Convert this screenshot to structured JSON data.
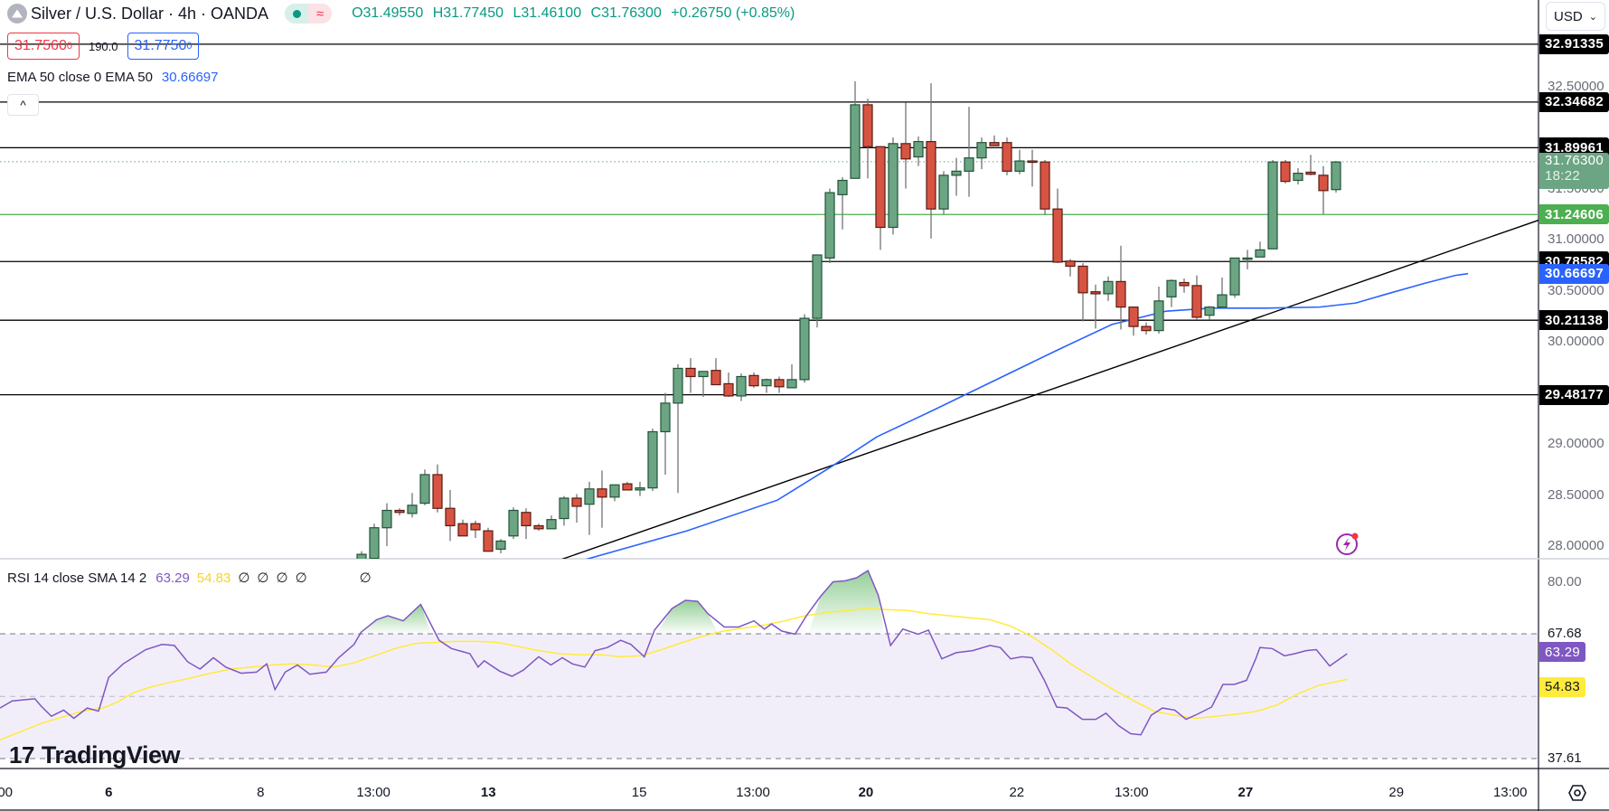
{
  "header": {
    "symbol_title": "Silver / U.S. Dollar · 4h · OANDA",
    "ohlc": {
      "open": "O31.49550",
      "high": "H31.77450",
      "low": "L31.46100",
      "close": "C31.76300",
      "change": "+0.26750 (+0.85%)"
    },
    "sell_price": "31.7560",
    "sell_price_sup": "0",
    "spread": "190.0",
    "buy_price": "31.7750",
    "buy_price_sup": "0",
    "ema_legend": "EMA 50 close 0 EMA 50",
    "ema_value": "30.66697",
    "collapse_icon": "^"
  },
  "currency": {
    "selected": "USD"
  },
  "rsi_legend": {
    "label": "RSI 14 close SMA 14 2",
    "rsi_value": "63.29",
    "sma_value": "54.83",
    "na_values": [
      "∅",
      "∅",
      "∅",
      "∅",
      "∅"
    ]
  },
  "price_axis": {
    "ticks": [
      "32.50000",
      "31.50000",
      "31.00000",
      "30.50000",
      "30.00000",
      "29.00000",
      "28.50000",
      "28.00000"
    ],
    "labels": [
      {
        "text": "32.91335",
        "kind": "hline",
        "color": "#000000"
      },
      {
        "text": "32.34682",
        "kind": "hline",
        "color": "#000000"
      },
      {
        "text": "31.89961",
        "kind": "hline",
        "color": "#000000"
      },
      {
        "text": "31.76300",
        "sub": "18:22",
        "kind": "last",
        "color": "#6ba583"
      },
      {
        "text": "31.24606",
        "kind": "hline",
        "color": "#4caf50"
      },
      {
        "text": "30.78582",
        "kind": "hline",
        "color": "#000000"
      },
      {
        "text": "30.66697",
        "kind": "ema",
        "color": "#2962ff"
      },
      {
        "text": "30.21138",
        "kind": "hline",
        "color": "#000000"
      },
      {
        "text": "29.48177",
        "kind": "hline",
        "color": "#000000"
      }
    ]
  },
  "rsi_axis": {
    "ticks": [
      "80.00",
      "67.68",
      "37.61"
    ],
    "labels": [
      {
        "text": "63.29",
        "color": "#7e57c2"
      },
      {
        "text": "54.83",
        "color": "#ffeb3b"
      }
    ]
  },
  "time_axis": {
    "labels": [
      {
        "text": "00",
        "bold": false
      },
      {
        "text": "6",
        "bold": true
      },
      {
        "text": "8",
        "bold": false
      },
      {
        "text": "13:00",
        "bold": false
      },
      {
        "text": "13",
        "bold": true
      },
      {
        "text": "15",
        "bold": false
      },
      {
        "text": "13:00",
        "bold": false
      },
      {
        "text": "20",
        "bold": true
      },
      {
        "text": "22",
        "bold": false
      },
      {
        "text": "13:00",
        "bold": false
      },
      {
        "text": "27",
        "bold": true
      },
      {
        "text": "29",
        "bold": false
      },
      {
        "text": "13:00",
        "bold": false
      }
    ]
  },
  "branding": {
    "logo_text": "TradingView"
  },
  "colors": {
    "up": "#6ba583",
    "up_border": "#225437",
    "down": "#d75442",
    "down_border": "#5b1a13",
    "ema": "#2962ff",
    "rsi": "#7e57c2",
    "rsi_sma": "#ffeb3b",
    "hline": "#000000",
    "hline_green": "#4caf50"
  },
  "chart_data": {
    "type": "candlestick",
    "title": "Silver / U.S. Dollar · 4h · OANDA",
    "ylabel": "USD",
    "ylim": [
      27.8,
      33.0
    ],
    "horizontal_levels": [
      32.91335,
      32.34682,
      31.89961,
      31.24606,
      30.78582,
      30.21138,
      29.48177
    ],
    "last_price": 31.763,
    "ema50_last": 30.66697,
    "x_labels": [
      "00",
      "6",
      "8",
      "13:00",
      "13",
      "15",
      "13:00",
      "20",
      "22",
      "13:00",
      "27",
      "29",
      "13:00"
    ],
    "candles": [
      {
        "o": 27.78,
        "h": 27.95,
        "l": 27.7,
        "c": 27.92
      },
      {
        "o": 27.88,
        "h": 28.22,
        "l": 27.75,
        "c": 28.18
      },
      {
        "o": 28.18,
        "h": 28.42,
        "l": 28.0,
        "c": 28.35
      },
      {
        "o": 28.35,
        "h": 28.37,
        "l": 28.3,
        "c": 28.33
      },
      {
        "o": 28.32,
        "h": 28.52,
        "l": 28.28,
        "c": 28.4
      },
      {
        "o": 28.42,
        "h": 28.75,
        "l": 28.4,
        "c": 28.7
      },
      {
        "o": 28.7,
        "h": 28.8,
        "l": 28.33,
        "c": 28.37
      },
      {
        "o": 28.37,
        "h": 28.55,
        "l": 28.05,
        "c": 28.2
      },
      {
        "o": 28.22,
        "h": 28.26,
        "l": 28.1,
        "c": 28.1
      },
      {
        "o": 28.22,
        "h": 28.25,
        "l": 28.08,
        "c": 28.16
      },
      {
        "o": 28.15,
        "h": 28.18,
        "l": 27.96,
        "c": 27.95
      },
      {
        "o": 27.97,
        "h": 28.07,
        "l": 27.93,
        "c": 28.05
      },
      {
        "o": 28.1,
        "h": 28.38,
        "l": 28.07,
        "c": 28.35
      },
      {
        "o": 28.33,
        "h": 28.37,
        "l": 28.07,
        "c": 28.2
      },
      {
        "o": 28.2,
        "h": 28.22,
        "l": 28.15,
        "c": 28.17
      },
      {
        "o": 28.17,
        "h": 28.3,
        "l": 28.17,
        "c": 28.26
      },
      {
        "o": 28.27,
        "h": 28.49,
        "l": 28.2,
        "c": 28.47
      },
      {
        "o": 28.47,
        "h": 28.51,
        "l": 28.23,
        "c": 28.39
      },
      {
        "o": 28.41,
        "h": 28.63,
        "l": 28.11,
        "c": 28.56
      },
      {
        "o": 28.56,
        "h": 28.74,
        "l": 28.18,
        "c": 28.48
      },
      {
        "o": 28.48,
        "h": 28.6,
        "l": 28.44,
        "c": 28.6
      },
      {
        "o": 28.61,
        "h": 28.63,
        "l": 28.57,
        "c": 28.55
      },
      {
        "o": 28.55,
        "h": 28.63,
        "l": 28.49,
        "c": 28.57
      },
      {
        "o": 28.57,
        "h": 29.15,
        "l": 28.54,
        "c": 29.12
      },
      {
        "o": 29.12,
        "h": 29.5,
        "l": 28.7,
        "c": 29.4
      },
      {
        "o": 29.4,
        "h": 29.78,
        "l": 28.52,
        "c": 29.74
      },
      {
        "o": 29.74,
        "h": 29.84,
        "l": 29.5,
        "c": 29.66
      },
      {
        "o": 29.66,
        "h": 29.71,
        "l": 29.46,
        "c": 29.71
      },
      {
        "o": 29.72,
        "h": 29.84,
        "l": 29.62,
        "c": 29.58
      },
      {
        "o": 29.59,
        "h": 29.7,
        "l": 29.46,
        "c": 29.47
      },
      {
        "o": 29.47,
        "h": 29.69,
        "l": 29.42,
        "c": 29.66
      },
      {
        "o": 29.67,
        "h": 29.7,
        "l": 29.55,
        "c": 29.57
      },
      {
        "o": 29.57,
        "h": 29.64,
        "l": 29.5,
        "c": 29.63
      },
      {
        "o": 29.63,
        "h": 29.66,
        "l": 29.5,
        "c": 29.56
      },
      {
        "o": 29.55,
        "h": 29.78,
        "l": 29.55,
        "c": 29.63
      },
      {
        "o": 29.63,
        "h": 30.27,
        "l": 29.6,
        "c": 30.23
      },
      {
        "o": 30.23,
        "h": 30.85,
        "l": 30.14,
        "c": 30.85
      },
      {
        "o": 30.82,
        "h": 31.5,
        "l": 30.77,
        "c": 31.46
      },
      {
        "o": 31.44,
        "h": 31.61,
        "l": 31.1,
        "c": 31.58
      },
      {
        "o": 31.6,
        "h": 32.55,
        "l": 31.6,
        "c": 32.32
      },
      {
        "o": 32.32,
        "h": 32.38,
        "l": 31.6,
        "c": 31.91
      },
      {
        "o": 31.91,
        "h": 31.75,
        "l": 30.9,
        "c": 31.12
      },
      {
        "o": 31.12,
        "h": 32.0,
        "l": 31.05,
        "c": 31.94
      },
      {
        "o": 31.94,
        "h": 32.34,
        "l": 31.5,
        "c": 31.79
      },
      {
        "o": 31.81,
        "h": 32.01,
        "l": 31.72,
        "c": 31.96
      },
      {
        "o": 31.96,
        "h": 32.53,
        "l": 31.01,
        "c": 31.3
      },
      {
        "o": 31.3,
        "h": 31.67,
        "l": 31.25,
        "c": 31.63
      },
      {
        "o": 31.63,
        "h": 31.8,
        "l": 31.43,
        "c": 31.67
      },
      {
        "o": 31.67,
        "h": 32.3,
        "l": 31.42,
        "c": 31.8
      },
      {
        "o": 31.8,
        "h": 32.0,
        "l": 31.69,
        "c": 31.95
      },
      {
        "o": 31.95,
        "h": 32.02,
        "l": 31.95,
        "c": 31.92
      },
      {
        "o": 31.95,
        "h": 32.0,
        "l": 31.63,
        "c": 31.67
      },
      {
        "o": 31.67,
        "h": 31.88,
        "l": 31.64,
        "c": 31.77
      },
      {
        "o": 31.77,
        "h": 31.88,
        "l": 31.52,
        "c": 31.76
      },
      {
        "o": 31.76,
        "h": 31.78,
        "l": 31.24,
        "c": 31.3
      },
      {
        "o": 31.3,
        "h": 31.5,
        "l": 30.77,
        "c": 30.78
      },
      {
        "o": 30.79,
        "h": 30.81,
        "l": 30.64,
        "c": 30.74
      },
      {
        "o": 30.74,
        "h": 30.77,
        "l": 30.2,
        "c": 30.48
      },
      {
        "o": 30.49,
        "h": 30.56,
        "l": 30.13,
        "c": 30.47
      },
      {
        "o": 30.47,
        "h": 30.64,
        "l": 30.4,
        "c": 30.59
      },
      {
        "o": 30.59,
        "h": 30.94,
        "l": 30.12,
        "c": 30.34
      },
      {
        "o": 30.34,
        "h": 30.3,
        "l": 30.06,
        "c": 30.15
      },
      {
        "o": 30.15,
        "h": 30.19,
        "l": 30.07,
        "c": 30.11
      },
      {
        "o": 30.11,
        "h": 30.54,
        "l": 30.08,
        "c": 30.4
      },
      {
        "o": 30.44,
        "h": 30.61,
        "l": 30.34,
        "c": 30.6
      },
      {
        "o": 30.58,
        "h": 30.62,
        "l": 30.48,
        "c": 30.55
      },
      {
        "o": 30.55,
        "h": 30.65,
        "l": 30.22,
        "c": 30.24
      },
      {
        "o": 30.26,
        "h": 30.35,
        "l": 30.22,
        "c": 30.34
      },
      {
        "o": 30.34,
        "h": 30.63,
        "l": 30.33,
        "c": 30.46
      },
      {
        "o": 30.46,
        "h": 30.8,
        "l": 30.43,
        "c": 30.82
      },
      {
        "o": 30.82,
        "h": 30.9,
        "l": 30.71,
        "c": 30.82
      },
      {
        "o": 30.83,
        "h": 30.98,
        "l": 30.83,
        "c": 30.9
      },
      {
        "o": 30.91,
        "h": 31.78,
        "l": 30.91,
        "c": 31.76
      },
      {
        "o": 31.76,
        "h": 31.78,
        "l": 31.55,
        "c": 31.57
      },
      {
        "o": 31.58,
        "h": 31.7,
        "l": 31.54,
        "c": 31.65
      },
      {
        "o": 31.66,
        "h": 31.83,
        "l": 31.63,
        "c": 31.64
      },
      {
        "o": 31.63,
        "h": 31.72,
        "l": 31.25,
        "c": 31.48
      },
      {
        "o": 31.49,
        "h": 31.77,
        "l": 31.46,
        "c": 31.76
      }
    ],
    "ema50": [
      [
        560,
        27.7
      ],
      [
        640,
        27.85
      ],
      [
        760,
        28.15
      ],
      [
        860,
        28.45
      ],
      [
        920,
        28.78
      ],
      [
        970,
        29.07
      ],
      [
        1030,
        29.32
      ],
      [
        1100,
        29.62
      ],
      [
        1170,
        29.92
      ],
      [
        1230,
        30.17
      ],
      [
        1290,
        30.3
      ],
      [
        1340,
        30.33
      ],
      [
        1400,
        30.33
      ],
      [
        1460,
        30.34
      ],
      [
        1500,
        30.38
      ],
      [
        1535,
        30.47
      ],
      [
        1575,
        30.57
      ],
      [
        1610,
        30.65
      ],
      [
        1624,
        30.667
      ]
    ],
    "trendline": [
      [
        595,
        27.79
      ],
      [
        1702,
        31.19
      ]
    ],
    "rsi": {
      "ylim": [
        20,
        90
      ],
      "overbought": 67.68,
      "middle": 52.6,
      "oversold": 37.61,
      "rsi_last": 63.29,
      "sma_last": 54.83
    }
  }
}
